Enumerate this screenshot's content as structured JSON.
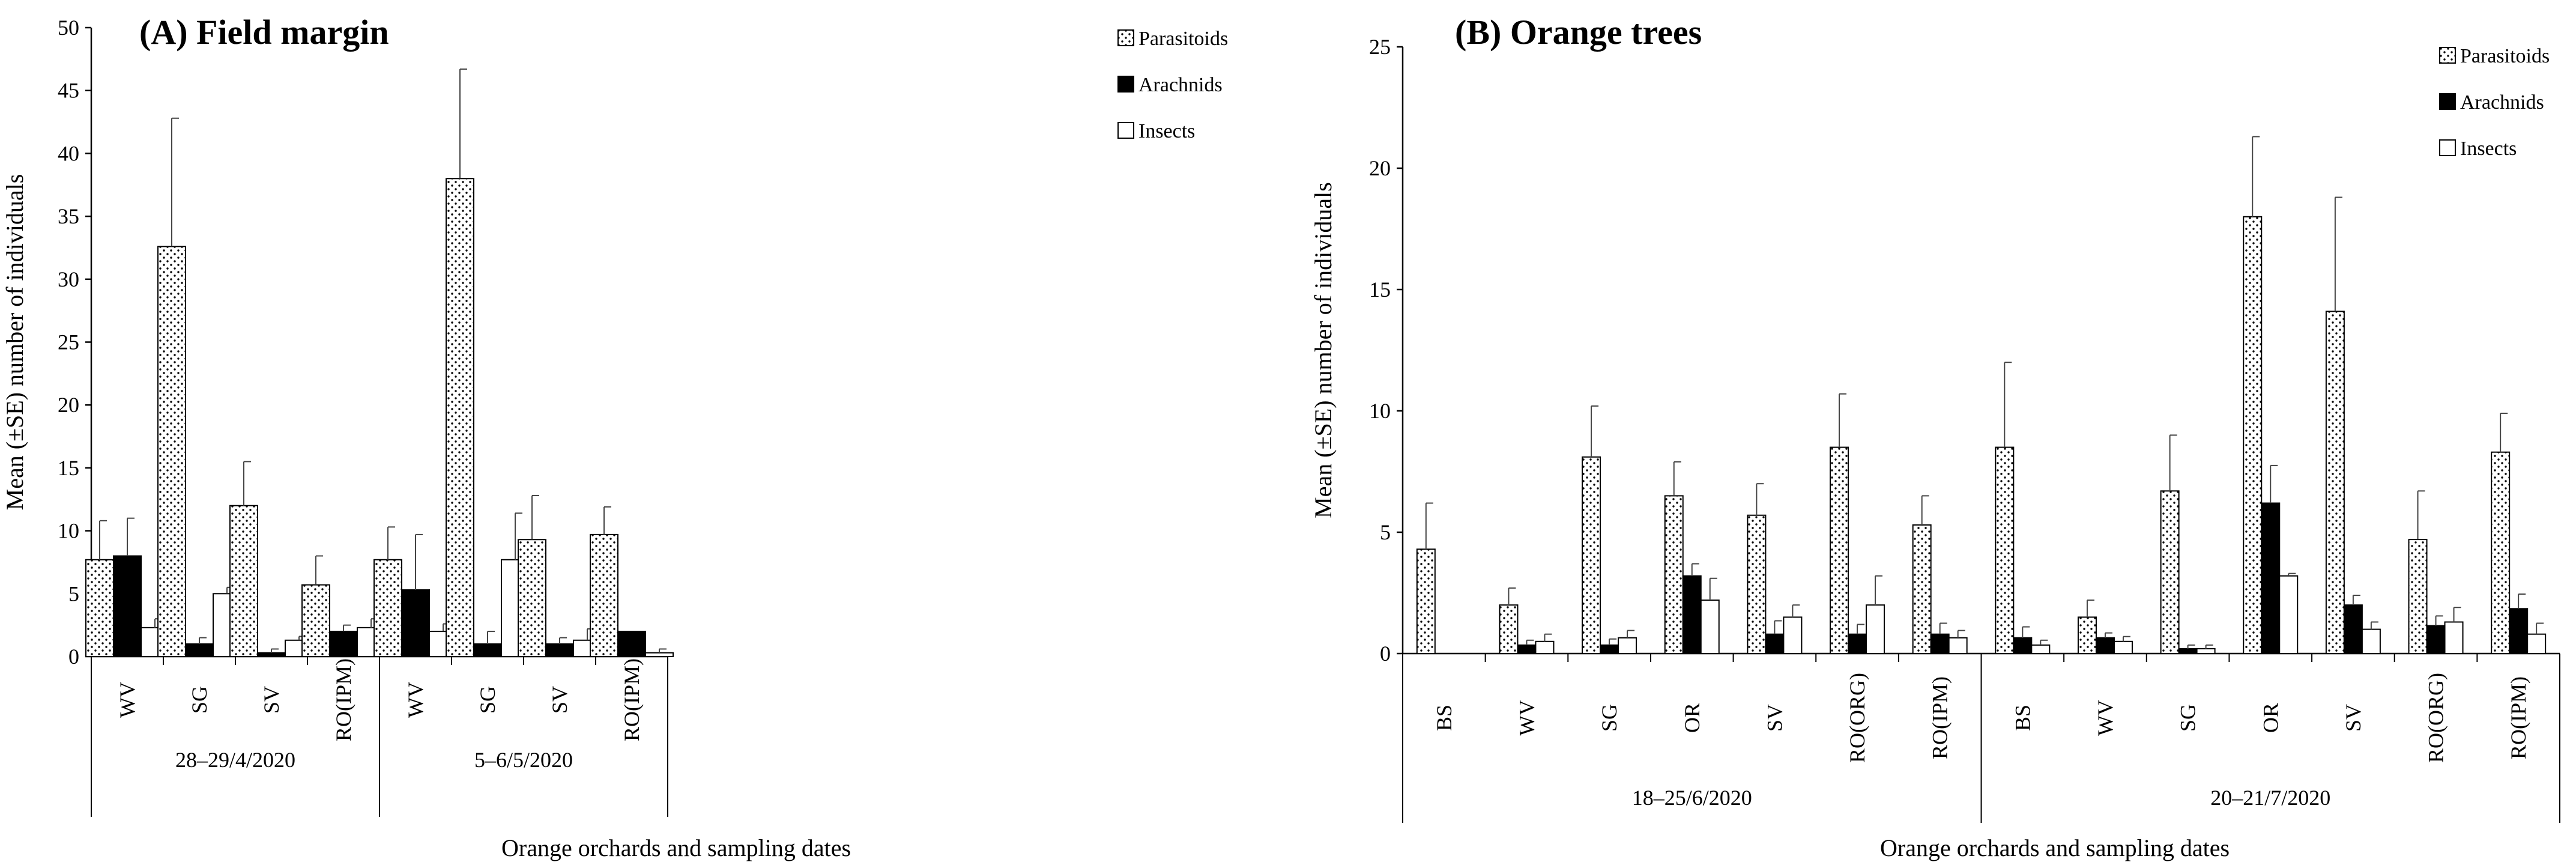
{
  "chart_data": [
    {
      "type": "bar",
      "panel": "A",
      "title": "(A) Field margin",
      "ylabel": "Mean (±SE) number of individuals",
      "xlabel": "Orange orchards and sampling dates",
      "ylim": [
        0,
        50
      ],
      "yticks": [
        "0",
        "5",
        "10",
        "15",
        "20",
        "25",
        "30",
        "35",
        "40",
        "45",
        "50"
      ],
      "groups": [
        {
          "label": "28–29/4/2020",
          "categories": [
            "WV",
            "SG",
            "SV",
            "RO(IPM)"
          ]
        },
        {
          "label": "5–6/5/2020",
          "categories": [
            "WV",
            "SG",
            "SV",
            "RO(IPM)"
          ]
        }
      ],
      "categories": [
        "WV",
        "SG",
        "SV",
        "RO(IPM)",
        "WV",
        "SG",
        "SV",
        "RO(IPM)"
      ],
      "series": [
        {
          "name": "Parasitoids",
          "values": [
            7.7,
            32.6,
            12.0,
            5.7,
            7.7,
            38.0,
            9.3,
            9.7
          ],
          "errors": [
            3.1,
            10.2,
            3.5,
            2.3,
            2.6,
            8.7,
            3.5,
            2.2
          ]
        },
        {
          "name": "Arachnids",
          "values": [
            8.0,
            1.0,
            0.3,
            2.0,
            5.3,
            1.0,
            1.0,
            2.0
          ],
          "errors": [
            3.0,
            0.5,
            0.3,
            0.5,
            4.4,
            1.0,
            0.5,
            0.0
          ]
        },
        {
          "name": "Insects",
          "values": [
            2.3,
            5.0,
            1.3,
            2.3,
            2.0,
            7.7,
            1.3,
            0.3
          ],
          "errors": [
            0.7,
            0.5,
            0.3,
            0.7,
            0.6,
            3.7,
            0.9,
            0.3
          ]
        }
      ],
      "legend_position": "top-right"
    },
    {
      "type": "bar",
      "panel": "B",
      "title": "(B) Orange trees",
      "ylabel": "Mean (±SE) number of individuals",
      "xlabel": "Orange orchards and sampling dates",
      "ylim": [
        0,
        25
      ],
      "yticks": [
        "0",
        "5",
        "10",
        "15",
        "20",
        "25"
      ],
      "groups": [
        {
          "label": "18–25/6/2020",
          "categories": [
            "BS",
            "WV",
            "SG",
            "OR",
            "SV",
            "RO(ORG)",
            "RO(IPM)"
          ]
        },
        {
          "label": "20–21/7/2020",
          "categories": [
            "BS",
            "WV",
            "SG",
            "OR",
            "SV",
            "RO(ORG)",
            "RO(IPM)"
          ]
        }
      ],
      "categories": [
        "BS",
        "WV",
        "SG",
        "OR",
        "SV",
        "RO(ORG)",
        "RO(IPM)",
        "BS",
        "WV",
        "SG",
        "OR",
        "SV",
        "RO(ORG)",
        "RO(IPM)"
      ],
      "series": [
        {
          "name": "Parasitoids",
          "values": [
            4.3,
            2.0,
            8.1,
            6.5,
            5.7,
            8.5,
            5.3,
            8.5,
            1.5,
            6.7,
            18.0,
            14.1,
            4.7,
            8.3
          ],
          "errors": [
            1.9,
            0.7,
            2.1,
            1.4,
            1.3,
            2.2,
            1.2,
            3.5,
            0.7,
            2.3,
            3.3,
            4.7,
            2.0,
            1.6
          ]
        },
        {
          "name": "Arachnids",
          "values": [
            0,
            0.35,
            0.35,
            3.2,
            0.8,
            0.8,
            0.8,
            0.65,
            0.65,
            0.2,
            6.2,
            2.0,
            1.15,
            1.85
          ],
          "errors": [
            0,
            0.2,
            0.25,
            0.5,
            0.55,
            0.4,
            0.45,
            0.45,
            0.2,
            0.15,
            1.55,
            0.4,
            0.4,
            0.6
          ]
        },
        {
          "name": "Insects",
          "values": [
            0,
            0.5,
            0.65,
            2.2,
            1.5,
            2.0,
            0.65,
            0.35,
            0.5,
            0.2,
            3.2,
            1.0,
            1.3,
            0.8
          ],
          "errors": [
            0,
            0.3,
            0.3,
            0.9,
            0.5,
            1.2,
            0.3,
            0.2,
            0.2,
            0.15,
            0.1,
            0.3,
            0.6,
            0.45
          ]
        }
      ],
      "legend_position": "top-right"
    }
  ]
}
